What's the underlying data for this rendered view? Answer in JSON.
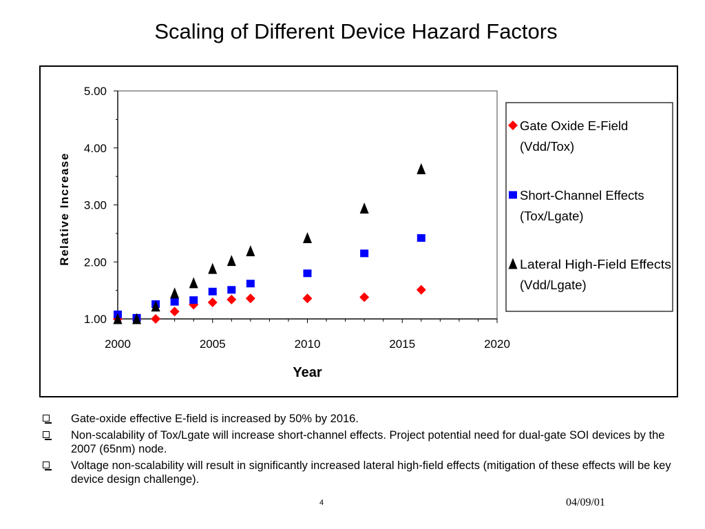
{
  "slide": {
    "title": "Scaling of Different Device Hazard Factors",
    "page_number": "4",
    "date": "04/09/01"
  },
  "bullets": [
    "Gate-oxide effective E-field is increased by 50% by 2016.",
    "Non-scalability of Tox/Lgate will increase short-channel effects.  Project potential need for dual-gate SOI devices by the 2007 (65nm) node.",
    "Voltage non-scalability will result in significantly increased lateral high-field effects (mitigation of these effects will be key device design challenge)."
  ],
  "chart_data": {
    "type": "scatter",
    "xlabel": "Year",
    "ylabel": "Relative Increase",
    "xlim": [
      2000,
      2020
    ],
    "ylim": [
      1.0,
      5.0
    ],
    "x_ticks": [
      "2000",
      "2005",
      "2010",
      "2015",
      "2020"
    ],
    "y_ticks": [
      "1.00",
      "2.00",
      "3.00",
      "4.00",
      "5.00"
    ],
    "grid": false,
    "legend_position": "right",
    "series": [
      {
        "name_lines": [
          "Gate Oxide E-Field",
          "(Vdd/Tox)"
        ],
        "marker": "diamond",
        "color": "#ff0000",
        "x": [
          2000,
          2001,
          2002,
          2003,
          2004,
          2005,
          2006,
          2007,
          2010,
          2013,
          2016
        ],
        "y": [
          1.0,
          1.0,
          1.0,
          1.13,
          1.25,
          1.29,
          1.34,
          1.36,
          1.36,
          1.38,
          1.51
        ]
      },
      {
        "name_lines": [
          "Short-Channel Effects",
          "(Tox/Lgate)"
        ],
        "marker": "square",
        "color": "#0000ff",
        "x": [
          2000,
          2001,
          2002,
          2003,
          2004,
          2005,
          2006,
          2007,
          2010,
          2013,
          2016
        ],
        "y": [
          1.08,
          1.02,
          1.26,
          1.3,
          1.33,
          1.48,
          1.51,
          1.62,
          1.8,
          2.15,
          2.42
        ]
      },
      {
        "name_lines": [
          "Lateral High-Field Effects",
          "(Vdd/Lgate)"
        ],
        "marker": "triangle",
        "color": "#000000",
        "x": [
          2000,
          2001,
          2002,
          2003,
          2004,
          2005,
          2006,
          2007,
          2010,
          2013,
          2016
        ],
        "y": [
          1.0,
          1.0,
          1.22,
          1.45,
          1.63,
          1.88,
          2.02,
          2.19,
          2.42,
          2.94,
          3.63
        ]
      }
    ]
  }
}
